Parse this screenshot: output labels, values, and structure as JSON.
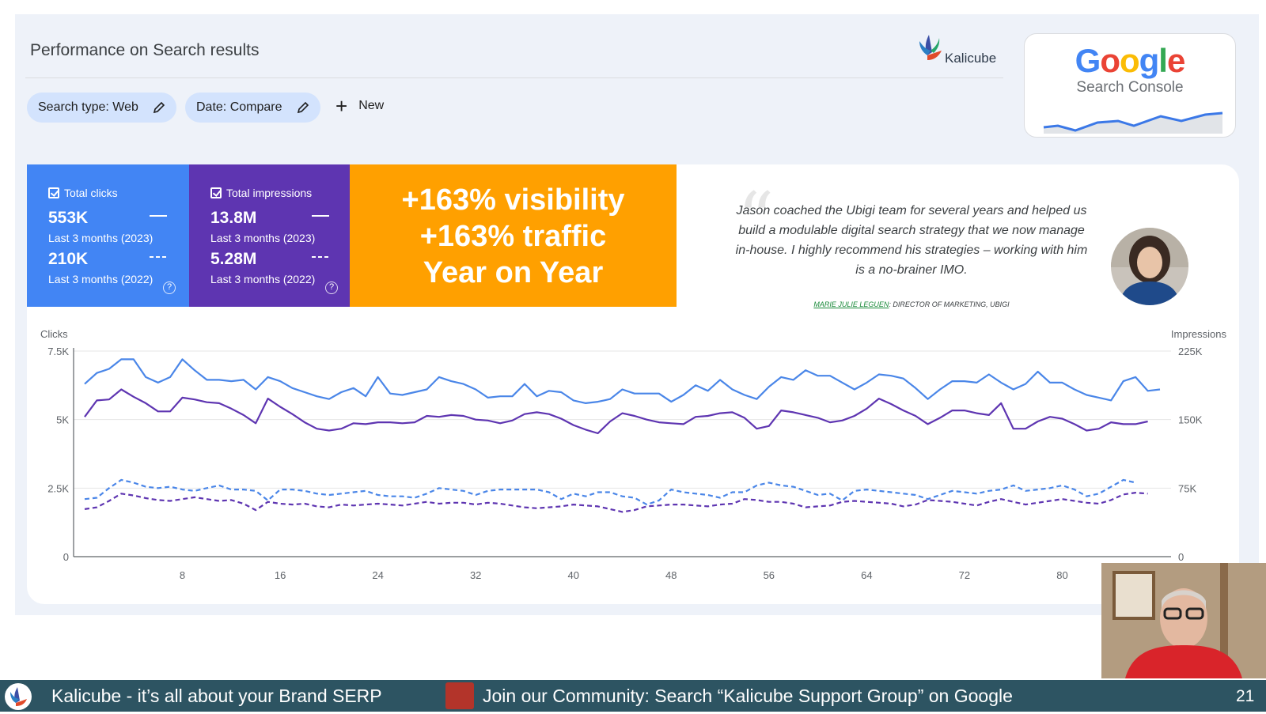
{
  "header": {
    "title": "Performance on Search results",
    "brand": "Kalicube",
    "gsc_logo_word": "Google",
    "gsc_logo_sub": "Search Console"
  },
  "filters": {
    "search_type": "Search type: Web",
    "date": "Date: Compare",
    "new": "New"
  },
  "metrics": [
    {
      "label": "Total clicks",
      "value_current": "553K",
      "period_current": "Last 3 months (2023)",
      "value_previous": "210K",
      "period_previous": "Last 3 months (2022)",
      "color": "#4285f4"
    },
    {
      "label": "Total impressions",
      "value_current": "13.8M",
      "period_current": "Last 3 months (2023)",
      "value_previous": "5.28M",
      "period_previous": "Last 3 months (2022)",
      "color": "#5e35b1"
    }
  ],
  "highlight": {
    "line1": "+163% visibility",
    "line2": "+163% traffic",
    "line3": "Year on Year",
    "color": "#ffa000"
  },
  "testimonial": {
    "quote": "Jason coached the Ubigi team for several years and helped us build a modulable digital search strategy that we now manage in-house. I highly recommend his strategies – working with him is a no-brainer IMO.",
    "name": "MARIE JULIE LEGUEN",
    "role": ": DIRECTOR OF MARKETING, UBIGI"
  },
  "chart_data": {
    "type": "line",
    "ylabel_left": "Clicks",
    "ylabel_right": "Impressions",
    "y_ticks_left": [
      "0",
      "2.5K",
      "5K",
      "7.5K"
    ],
    "y_ticks_right": [
      "0",
      "75K",
      "150K",
      "225K"
    ],
    "x_ticks": [
      "8",
      "16",
      "24",
      "32",
      "40",
      "48",
      "56",
      "64",
      "72",
      "80"
    ],
    "ylim_left": [
      0,
      7500
    ],
    "ylim_right": [
      0,
      225000
    ],
    "series": [
      {
        "name": "Total clicks",
        "axis": "left",
        "style": "solid",
        "color": "#4a86e8",
        "values": [
          6300,
          6700,
          6850,
          7200,
          7200,
          6550,
          6350,
          6550,
          7200,
          6800,
          6450,
          6450,
          6400,
          6450,
          6100,
          6550,
          6400,
          6150,
          6000,
          5850,
          5750,
          6000,
          6150,
          5850,
          6550,
          5950,
          5900,
          6000,
          6100,
          6550,
          6400,
          6300,
          6100,
          5800,
          5850,
          5850,
          6300,
          5850,
          6050,
          6000,
          5700,
          5600,
          5650,
          5750,
          6100,
          5950,
          5950,
          5950,
          5650,
          5900,
          6250,
          6050,
          6450,
          6100,
          5900,
          5750,
          6200,
          6550,
          6450,
          6800,
          6600,
          6600,
          6350,
          6100,
          6350,
          6650,
          6600,
          6500,
          6150,
          5750,
          6100,
          6400,
          6400,
          6350,
          6650,
          6350,
          6100,
          6300,
          6750,
          6350,
          6350,
          6100,
          5900,
          5800,
          5700,
          6400,
          6550,
          6050,
          6100
        ]
      },
      {
        "name": "Total impressions",
        "axis": "right",
        "style": "solid",
        "color": "#5e35b1",
        "values": [
          153000,
          171000,
          172000,
          183000,
          175000,
          168000,
          159000,
          159000,
          174000,
          172000,
          169000,
          168000,
          162000,
          155000,
          146000,
          173000,
          164000,
          156000,
          147000,
          140000,
          138000,
          140000,
          146000,
          145000,
          147000,
          147000,
          146000,
          147000,
          154000,
          153000,
          155000,
          154000,
          150000,
          149000,
          146000,
          149000,
          156000,
          158000,
          156000,
          151000,
          144000,
          139000,
          135000,
          148000,
          157000,
          154000,
          150000,
          147000,
          146000,
          145000,
          153000,
          154000,
          157000,
          158000,
          152000,
          140000,
          143000,
          160000,
          158000,
          155000,
          152000,
          147000,
          149000,
          154000,
          162000,
          173000,
          167000,
          160000,
          154000,
          145000,
          152000,
          160000,
          160000,
          157000,
          155000,
          168000,
          140000,
          140000,
          148000,
          153000,
          151000,
          145000,
          138000,
          140000,
          147000,
          145000,
          145000,
          148000
        ]
      },
      {
        "name": "Total clicks (previous)",
        "axis": "left",
        "style": "dashed",
        "color": "#4a86e8",
        "values": [
          2100,
          2150,
          2500,
          2800,
          2700,
          2550,
          2500,
          2550,
          2450,
          2400,
          2500,
          2600,
          2450,
          2450,
          2400,
          2050,
          2450,
          2450,
          2400,
          2300,
          2250,
          2300,
          2350,
          2400,
          2250,
          2200,
          2200,
          2150,
          2300,
          2500,
          2450,
          2400,
          2250,
          2400,
          2450,
          2450,
          2450,
          2450,
          2350,
          2100,
          2300,
          2200,
          2350,
          2350,
          2200,
          2150,
          1900,
          2050,
          2450,
          2350,
          2300,
          2250,
          2150,
          2350,
          2350,
          2600,
          2700,
          2600,
          2550,
          2400,
          2250,
          2300,
          2050,
          2400,
          2450,
          2400,
          2350,
          2300,
          2250,
          2100,
          2250,
          2400,
          2350,
          2300,
          2400,
          2450,
          2600,
          2400,
          2450,
          2500,
          2600,
          2450,
          2200,
          2300,
          2550,
          2800,
          2700
        ]
      },
      {
        "name": "Total impressions (previous)",
        "axis": "right",
        "style": "dashed",
        "color": "#5e35b1",
        "values": [
          52000,
          54000,
          61000,
          69000,
          67000,
          64000,
          62000,
          61000,
          63000,
          65000,
          63000,
          61000,
          62000,
          58000,
          51000,
          60000,
          58000,
          57000,
          58000,
          55000,
          54000,
          57000,
          56000,
          57000,
          58000,
          57000,
          56000,
          58000,
          60000,
          58000,
          59000,
          59000,
          57000,
          59000,
          58000,
          56000,
          54000,
          53000,
          54000,
          55000,
          57000,
          56000,
          55000,
          52000,
          49000,
          51000,
          55000,
          56000,
          57000,
          57000,
          56000,
          55000,
          57000,
          58000,
          63000,
          62000,
          60000,
          60000,
          58000,
          54000,
          55000,
          56000,
          60000,
          61000,
          60000,
          59000,
          58000,
          55000,
          57000,
          62000,
          61000,
          60000,
          58000,
          56000,
          60000,
          63000,
          60000,
          57000,
          59000,
          61000,
          63000,
          61000,
          59000,
          58000,
          62000,
          68000,
          70000,
          69000
        ]
      }
    ]
  },
  "footer": {
    "brand": "Kalicube  - it’s all about your Brand SERP",
    "join": "Join our Community: Search “Kalicube Support Group” on Google",
    "page": "21"
  }
}
